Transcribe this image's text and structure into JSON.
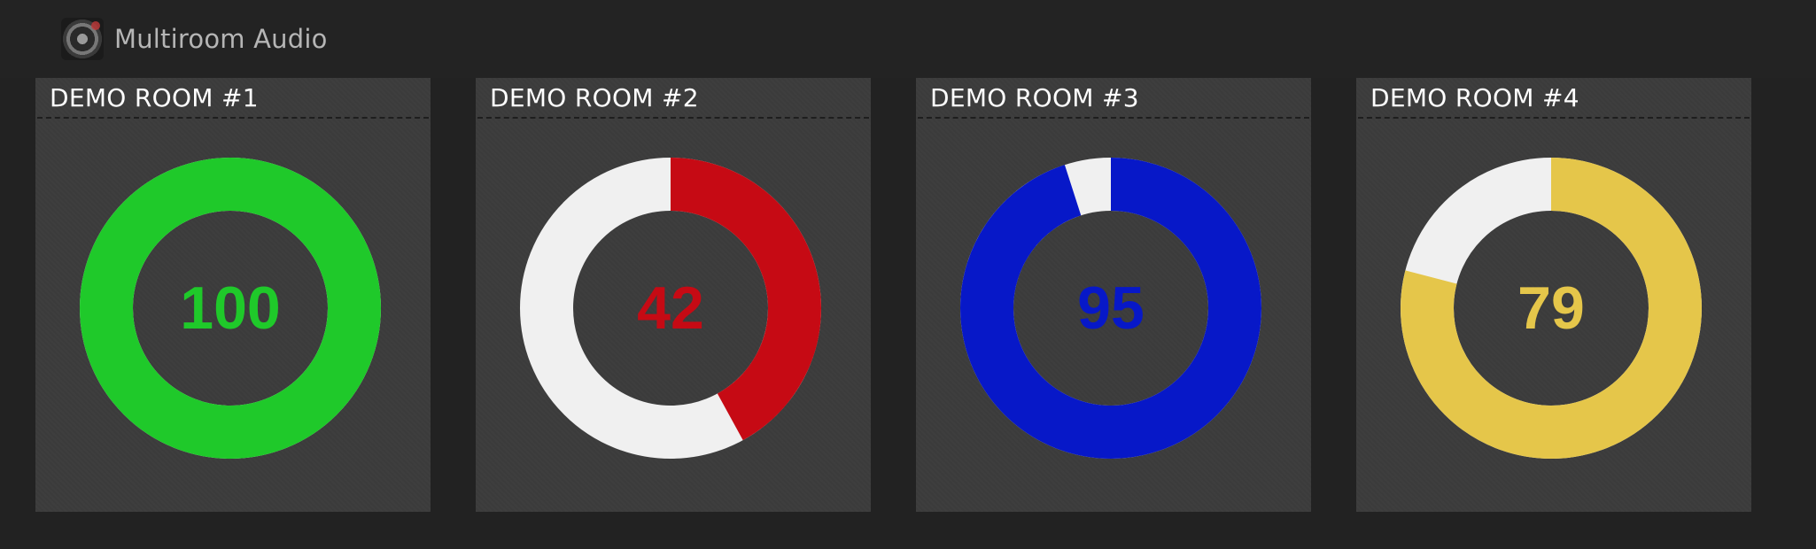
{
  "header": {
    "logo_icon": "speaker-icon",
    "title": "Multiroom Audio"
  },
  "rooms": [
    {
      "title": "DEMO ROOM #1",
      "volume": 100,
      "value_label": "100",
      "color": "#1fc92a",
      "track_color": "#f0f0f0"
    },
    {
      "title": "DEMO ROOM #2",
      "volume": 42,
      "value_label": "42",
      "color": "#c60a14",
      "track_color": "#f0f0f0"
    },
    {
      "title": "DEMO ROOM #3",
      "volume": 95,
      "value_label": "95",
      "color": "#0718c8",
      "track_color": "#f0f0f0"
    },
    {
      "title": "DEMO ROOM #4",
      "volume": 79,
      "value_label": "79",
      "color": "#e5c64a",
      "track_color": "#f0f0f0"
    }
  ]
}
